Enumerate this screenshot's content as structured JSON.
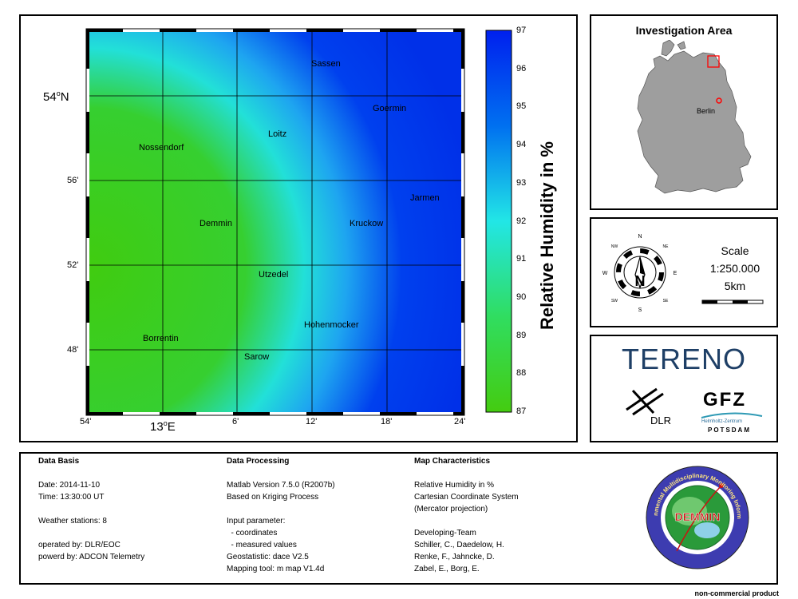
{
  "map": {
    "colorbar": {
      "title": "Relative Humidity in %",
      "ticks": [
        "97",
        "96",
        "95",
        "94",
        "93",
        "92",
        "91",
        "90",
        "89",
        "88",
        "87"
      ],
      "colors": {
        "low": "#33cc11",
        "mid": "#22e6e6",
        "high": "#0022ee"
      }
    },
    "lat_labels": [
      {
        "text": "54",
        "sup": "o",
        "suffix": "N",
        "major": true
      },
      {
        "text": "56'",
        "major": false
      },
      {
        "text": "52'",
        "major": false
      },
      {
        "text": "48'",
        "major": false
      }
    ],
    "lon_labels": [
      "54'",
      "6'",
      "12'",
      "18'",
      "24'"
    ],
    "lon_major": {
      "text": "13",
      "sup": "o",
      "suffix": "E"
    },
    "places": [
      "Sassen",
      "Goermin",
      "Loitz",
      "Nossendorf",
      "Jarmen",
      "Demmin",
      "Kruckow",
      "Utzedel",
      "Hohenmocker",
      "Borrentin",
      "Sarow"
    ]
  },
  "area": {
    "title": "Investigation Area",
    "city": "Berlin",
    "colors": {
      "land": "#9e9e9e",
      "highlight": "#ff0000"
    }
  },
  "scale": {
    "title": "Scale",
    "ratio": "1:250.000",
    "distance": "5km",
    "compass": [
      "N",
      "NE",
      "E",
      "SE",
      "S",
      "SW",
      "W",
      "NW"
    ]
  },
  "logos": {
    "tereno": "TERENO",
    "dlr": "DLR",
    "gfz": "GFZ",
    "gfz_sub1": "Helmholtz-Zentrum",
    "gfz_sub2": "POTSDAM",
    "demmin": "DEMMIN",
    "demmin_ring": "Durable Environmental Multidisciplinary Monitoring Information Network",
    "colors": {
      "tereno": "#1e3f66",
      "tereno_accent": "#2f9ab5",
      "demmin_ring": "#3d3cb0",
      "demmin_globe": "#2a9a3a",
      "demmin_text": "#cc1111"
    }
  },
  "info": {
    "data_basis": {
      "title": "Data Basis",
      "date": "Date: 2014-11-10",
      "time": "Time: 13:30:00 UT",
      "stations": "Weather stations: 8",
      "operated": "operated by: DLR/EOC",
      "powered": "powerd by: ADCON Telemetry"
    },
    "processing": {
      "title": "Data Processing",
      "lines1": [
        "Matlab Version 7.5.0 (R2007b)",
        "Based on Kriging Process"
      ],
      "lines2": [
        "Input parameter:",
        "  - coordinates",
        "  - measured values",
        "Geostatistic: dace V2.5",
        "Mapping tool: m map V1.4d"
      ]
    },
    "characteristics": {
      "title": "Map Characteristics",
      "lines1": [
        "Relative Humidity in %",
        "Cartesian Coordinate System",
        "(Mercator projection)"
      ],
      "lines2": [
        "Developing-Team",
        "Schiller, C., Daedelow, H.",
        "Renke, F., Jahncke, D.",
        "Zabel, E., Borg, E."
      ]
    }
  },
  "footer": "non-commercial product"
}
